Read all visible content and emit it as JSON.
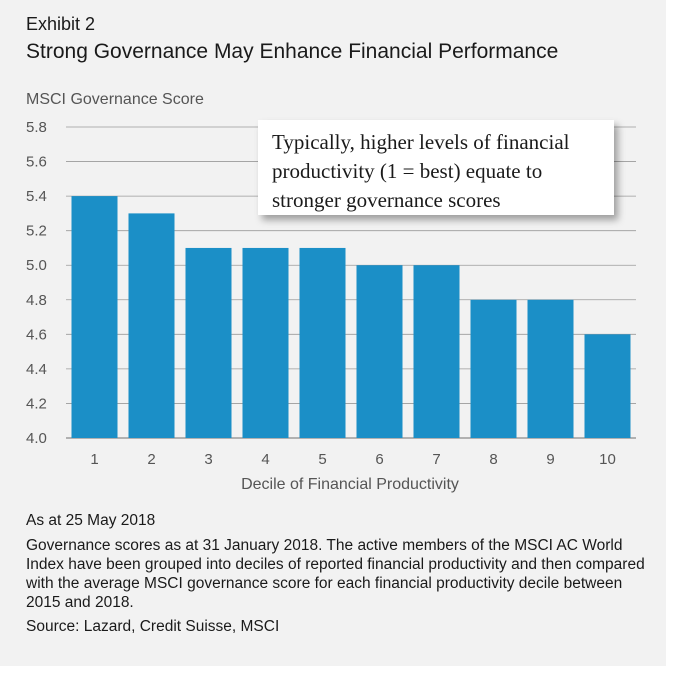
{
  "header": {
    "exhibit": "Exhibit 2",
    "title": "Strong Governance May Enhance Financial Performance"
  },
  "callout": {
    "text": "Typically, higher levels of financial productivity (1 = best) equate to stronger governance scores"
  },
  "chart_data": {
    "type": "bar",
    "ylabel": "MSCI Governance Score",
    "xlabel": "Decile of Financial Productivity",
    "categories": [
      "1",
      "2",
      "3",
      "4",
      "5",
      "6",
      "7",
      "8",
      "9",
      "10"
    ],
    "values": [
      5.4,
      5.3,
      5.1,
      5.1,
      5.1,
      5.0,
      5.0,
      4.8,
      4.8,
      4.6
    ],
    "ylim": [
      4.0,
      5.8
    ],
    "yticks": [
      "4.0",
      "4.2",
      "4.4",
      "4.6",
      "4.8",
      "5.0",
      "5.2",
      "5.4",
      "5.6",
      "5.8"
    ],
    "grid": true,
    "bar_color": "#1b8fc7"
  },
  "footnotes": {
    "as_at": "As at 25 May 2018",
    "description": "Governance scores as at 31 January 2018. The active members of the MSCI AC World Index have been grouped into deciles of reported financial productivity and then compared with the average MSCI governance score for each financial productivity decile between 2015 and 2018.",
    "source": "Source: Lazard, Credit Suisse, MSCI"
  }
}
